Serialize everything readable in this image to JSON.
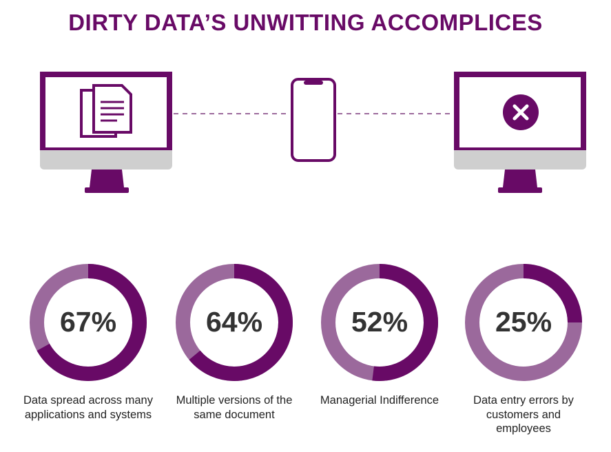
{
  "title": "DIRTY DATA’S UNWITTING ACCOMPLICES",
  "chart_data": [
    {
      "type": "donut",
      "values": [
        67
      ],
      "value_labels": [
        "67%"
      ],
      "label": "Data spread across many applications and systems",
      "color": "#680a66",
      "track_color": "#9b699c"
    },
    {
      "type": "donut",
      "values": [
        64
      ],
      "value_labels": [
        "64%"
      ],
      "label": "Multiple versions of the same document",
      "color": "#680a66",
      "track_color": "#9b699c"
    },
    {
      "type": "donut",
      "values": [
        52
      ],
      "value_labels": [
        "52%"
      ],
      "label": "Managerial Indifference",
      "color": "#680a66",
      "track_color": "#9b699c"
    },
    {
      "type": "donut",
      "values": [
        25
      ],
      "value_labels": [
        "25%"
      ],
      "label": "Data entry errors by customers and employees",
      "color": "#680a66",
      "track_color": "#9b699c"
    }
  ]
}
